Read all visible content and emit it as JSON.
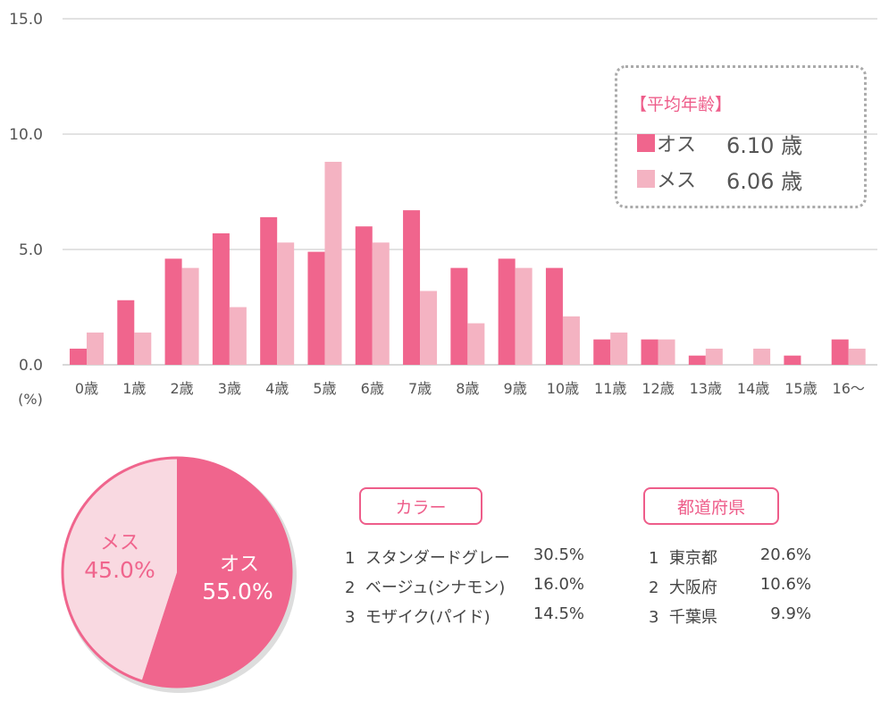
{
  "chart_data": [
    {
      "type": "bar",
      "title": "",
      "ylabel": "(%)",
      "xlabel": "",
      "ylim": [
        0,
        15
      ],
      "yticks": [
        "0.0",
        "5.0",
        "10.0",
        "15.0"
      ],
      "grid": true,
      "categories": [
        "0歳",
        "1歳",
        "2歳",
        "3歳",
        "4歳",
        "5歳",
        "6歳",
        "7歳",
        "8歳",
        "9歳",
        "10歳",
        "11歳",
        "12歳",
        "13歳",
        "14歳",
        "15歳",
        "16〜"
      ],
      "series": [
        {
          "name": "オス",
          "color": "#f0658d",
          "values": [
            0.7,
            2.8,
            4.6,
            5.7,
            6.4,
            4.9,
            6.0,
            6.7,
            4.2,
            4.6,
            4.2,
            1.1,
            1.1,
            0.4,
            0,
            0.4,
            1.1
          ]
        },
        {
          "name": "メス",
          "color": "#f4b3c2",
          "values": [
            1.4,
            1.4,
            4.2,
            2.5,
            5.3,
            8.8,
            5.3,
            3.2,
            1.8,
            4.2,
            2.1,
            1.4,
            1.1,
            0.7,
            0.7,
            0,
            0.7
          ]
        }
      ],
      "legend": {
        "title": "【平均年齢】",
        "placement": "top-right",
        "items": [
          {
            "label": "オス",
            "value": "6.10 歳"
          },
          {
            "label": "メス",
            "value": "6.06 歳"
          }
        ]
      }
    },
    {
      "type": "pie",
      "slices": [
        {
          "label": "オス",
          "value": 55.0,
          "display": "55.0%",
          "color": "#f0658d"
        },
        {
          "label": "メス",
          "value": 45.0,
          "display": "45.0%",
          "color": "#f9d9e1"
        }
      ]
    }
  ],
  "color_ranking": {
    "title": "カラー",
    "items": [
      {
        "rank": "1",
        "name": "スタンダードグレー",
        "pct": "30.5%"
      },
      {
        "rank": "2",
        "name": "ベージュ(シナモン)",
        "pct": "16.0%"
      },
      {
        "rank": "3",
        "name": "モザイク(パイド)",
        "pct": "14.5%"
      }
    ]
  },
  "prefecture_ranking": {
    "title": "都道府県",
    "items": [
      {
        "rank": "1",
        "name": "東京都",
        "pct": "20.6%"
      },
      {
        "rank": "2",
        "name": "大阪府",
        "pct": "10.6%"
      },
      {
        "rank": "3",
        "name": "千葉県",
        "pct": "9.9%"
      }
    ]
  }
}
